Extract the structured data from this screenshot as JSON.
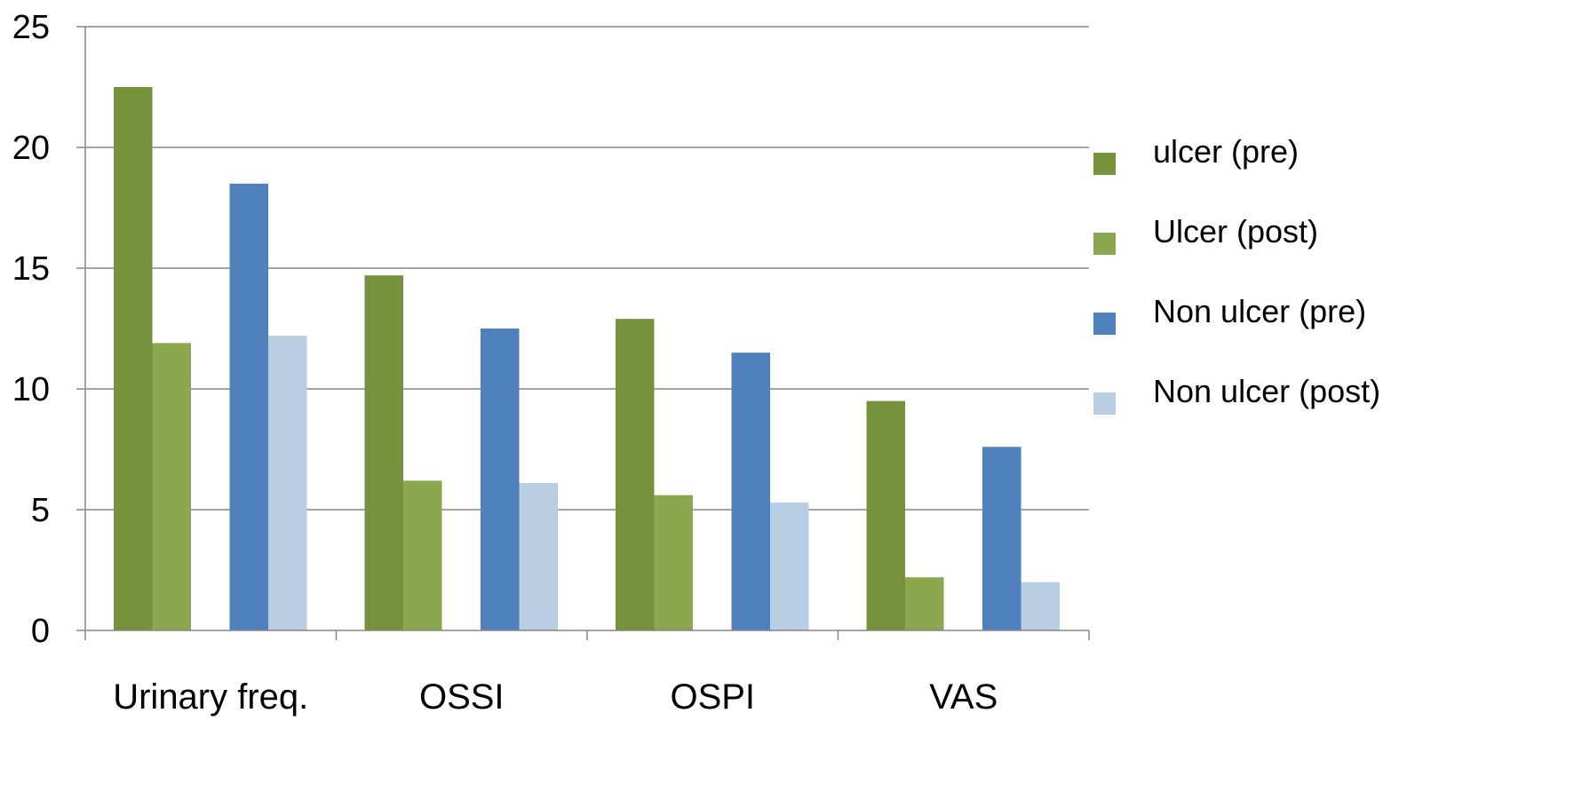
{
  "chart_data": {
    "type": "bar",
    "categories": [
      "Urinary freq.",
      "OSSI",
      "OSPI",
      "VAS"
    ],
    "series": [
      {
        "name": "ulcer (pre)",
        "color": "#76923c",
        "values": [
          22.5,
          14.7,
          12.9,
          9.5
        ]
      },
      {
        "name": "Ulcer (post)",
        "color": "#8ba84e",
        "values": [
          11.9,
          6.2,
          5.6,
          2.2
        ]
      },
      {
        "name": "Non ulcer (pre)",
        "color": "#4f81bd",
        "values": [
          18.5,
          12.5,
          11.5,
          7.6
        ]
      },
      {
        "name": "Non ulcer (post)",
        "color": "#b9cde5",
        "values": [
          12.2,
          6.1,
          5.3,
          2.0
        ]
      }
    ],
    "ylim": [
      0,
      25
    ],
    "yticks": [
      "0",
      "5",
      "10",
      "15",
      "20",
      "25"
    ],
    "grid": true,
    "legend_position": "right"
  }
}
